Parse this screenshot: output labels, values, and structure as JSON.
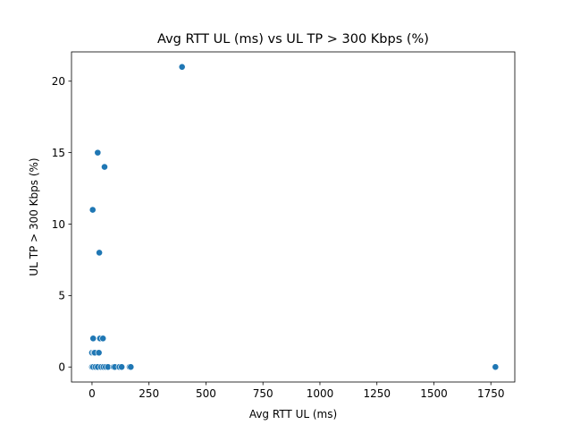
{
  "chart_data": {
    "type": "scatter",
    "title": "Avg RTT UL (ms) vs UL TP > 300 Kbps (%)",
    "xlabel": "Avg RTT UL (ms)",
    "ylabel": "UL TP > 300 Kbps (%)",
    "xlim": [
      -90,
      1855
    ],
    "ylim": [
      -1.05,
      22.05
    ],
    "x_ticks": [
      0,
      250,
      500,
      750,
      1000,
      1250,
      1500,
      1750
    ],
    "y_ticks": [
      0,
      5,
      10,
      15,
      20
    ],
    "grid": false,
    "marker_color": "#1f77b4",
    "series": [
      {
        "name": "UL TP > 300 Kbps (%)",
        "points": [
          {
            "x": 395,
            "y": 21
          },
          {
            "x": 25,
            "y": 15
          },
          {
            "x": 55,
            "y": 14
          },
          {
            "x": 3,
            "y": 11
          },
          {
            "x": 32,
            "y": 8
          },
          {
            "x": 5,
            "y": 2
          },
          {
            "x": 35,
            "y": 2
          },
          {
            "x": 48,
            "y": 2
          },
          {
            "x": 0,
            "y": 1
          },
          {
            "x": 8,
            "y": 1
          },
          {
            "x": 12,
            "y": 1
          },
          {
            "x": 30,
            "y": 1
          },
          {
            "x": 0,
            "y": 0
          },
          {
            "x": 5,
            "y": 0
          },
          {
            "x": 15,
            "y": 0
          },
          {
            "x": 25,
            "y": 0
          },
          {
            "x": 40,
            "y": 0
          },
          {
            "x": 50,
            "y": 0
          },
          {
            "x": 60,
            "y": 0
          },
          {
            "x": 70,
            "y": 0
          },
          {
            "x": 95,
            "y": 0
          },
          {
            "x": 100,
            "y": 0
          },
          {
            "x": 120,
            "y": 0
          },
          {
            "x": 130,
            "y": 0
          },
          {
            "x": 165,
            "y": 0
          },
          {
            "x": 170,
            "y": 0
          },
          {
            "x": 1770,
            "y": 0
          }
        ]
      }
    ]
  }
}
